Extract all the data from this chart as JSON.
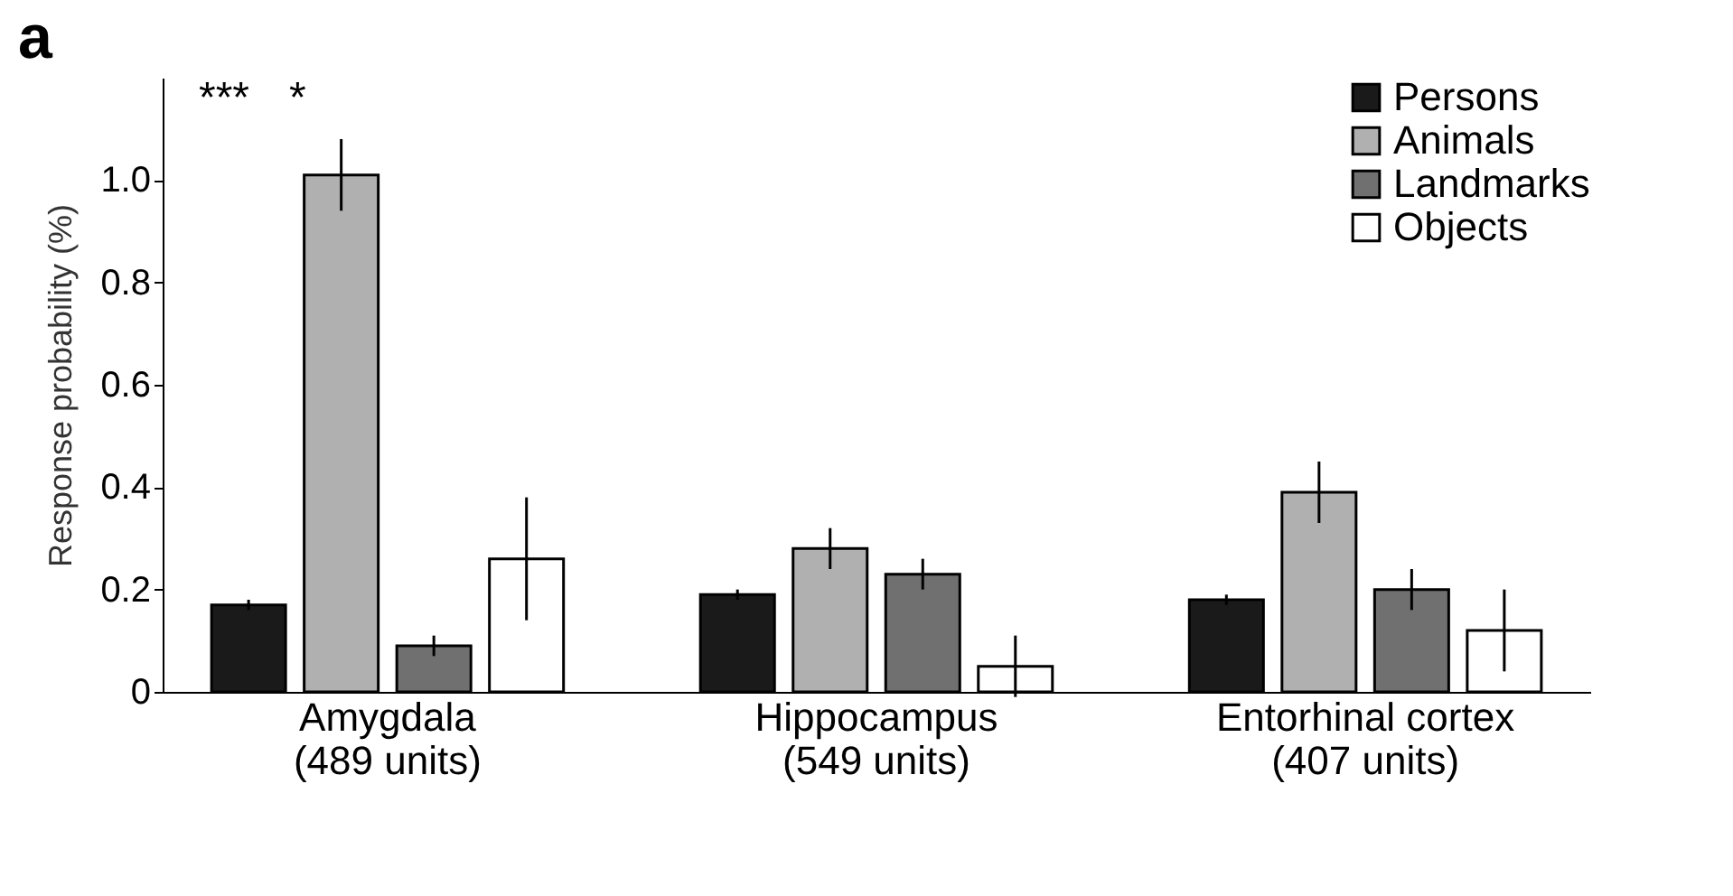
{
  "chart_data": {
    "type": "bar",
    "title": "a",
    "ylabel": "Response probability (%)",
    "categories": [
      "Amygdala\n(489 units)",
      "Hippocampus\n(549 units)",
      "Entorhinal cortex\n(407 units)"
    ],
    "series": [
      {
        "name": "Persons",
        "color": "#1a1a1a",
        "values": [
          0.17,
          0.19,
          0.18
        ],
        "errors": [
          0.01,
          0.01,
          0.01
        ]
      },
      {
        "name": "Animals",
        "color": "#b0b0b0",
        "values": [
          1.01,
          0.28,
          0.39
        ],
        "errors": [
          0.07,
          0.04,
          0.06
        ]
      },
      {
        "name": "Landmarks",
        "color": "#707070",
        "values": [
          0.09,
          0.23,
          0.2
        ],
        "errors": [
          0.02,
          0.03,
          0.04
        ]
      },
      {
        "name": "Objects",
        "color": "#ffffff",
        "values": [
          0.26,
          0.05,
          0.12
        ],
        "errors": [
          0.12,
          0.06,
          0.08
        ]
      }
    ],
    "ylim": [
      0,
      1.2
    ],
    "yticks": [
      0,
      0.2,
      0.4,
      0.6,
      0.8,
      {
        "value": 1,
        "label": "1.0"
      }
    ],
    "annotations": [
      "***",
      "*"
    ],
    "legend": "top right",
    "grid": false
  }
}
